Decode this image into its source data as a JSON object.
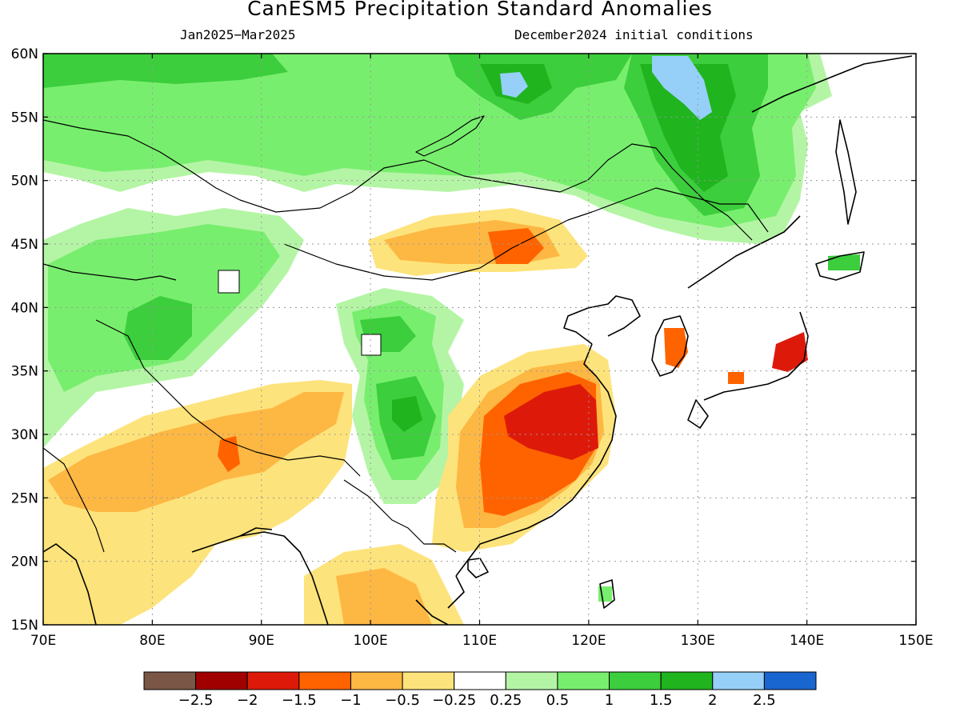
{
  "header": {
    "title": "CanESM5 Precipitation Standard Anomalies",
    "period": "Jan2025−Mar2025",
    "init": "December2024 initial conditions"
  },
  "map": {
    "lon_range": [
      70,
      150
    ],
    "lat_range": [
      15,
      60
    ],
    "lon_ticks": [
      "70E",
      "80E",
      "90E",
      "100E",
      "110E",
      "120E",
      "130E",
      "140E",
      "150E"
    ],
    "lat_ticks": [
      "15N",
      "20N",
      "25N",
      "30N",
      "35N",
      "40N",
      "45N",
      "50N",
      "55N",
      "60N"
    ],
    "gridlines": "dotted",
    "colorbar": {
      "colors": [
        "#7a5646",
        "#a00000",
        "#dd1a0a",
        "#ff6300",
        "#fdb743",
        "#fde37b",
        "#ffffff",
        "#b4f5a5",
        "#78ee6e",
        "#3cce3c",
        "#20b41e",
        "#96d0f8",
        "#1a66d0"
      ],
      "labels": [
        "−2.5",
        "−2",
        "−1.5",
        "−1",
        "−0.5",
        "−0.25",
        "0.25",
        "0.5",
        "1",
        "1.5",
        "2",
        "2.5"
      ]
    }
  }
}
